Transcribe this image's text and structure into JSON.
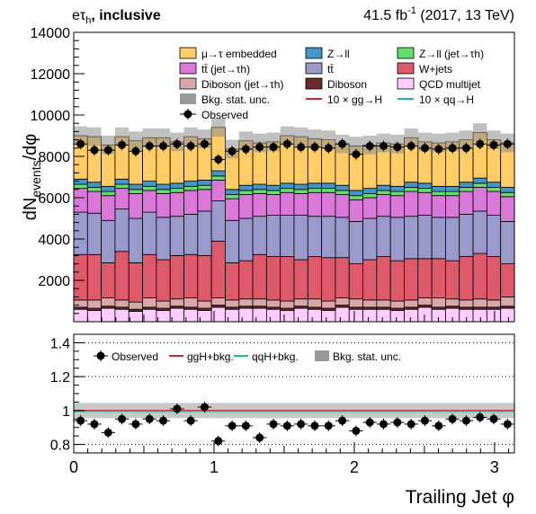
{
  "header": {
    "channel": "eτ",
    "channel_sub": "h",
    "category": ", inclusive",
    "lumi_value": "41.5 fb",
    "lumi_exp": "-1",
    "lumi_rest": " (2017, 13 TeV)"
  },
  "legend_main": [
    {
      "label": "μ→τ embedded",
      "color": "#ffcc66",
      "kind": "fill"
    },
    {
      "label": "Z→ll",
      "color": "#4496c8",
      "kind": "fill"
    },
    {
      "label": "Z→ll (jet→τh)",
      "color": "#64de6a",
      "kind": "fill"
    },
    {
      "label": "tt̄ (jet→τh)",
      "color": "#d978d9",
      "kind": "fill"
    },
    {
      "label": "tt̄",
      "color": "#9999cc",
      "kind": "fill"
    },
    {
      "label": "W+jets",
      "color": "#de5a6a",
      "kind": "fill"
    },
    {
      "label": "Diboson (jet→τh)",
      "color": "#d8a8a8",
      "kind": "fill"
    },
    {
      "label": "Diboson",
      "color": "#6a2a2a",
      "kind": "fill"
    },
    {
      "label": "QCD multijet",
      "color": "#ffccff",
      "kind": "fill"
    },
    {
      "label": "Bkg. stat. unc.",
      "color": "#999999",
      "kind": "band"
    },
    {
      "label": "10 × gg→H",
      "color": "#d62728",
      "kind": "line"
    },
    {
      "label": "10 × qq→H",
      "color": "#17b8a6",
      "kind": "line"
    },
    {
      "label": "Observed",
      "color": "#000000",
      "kind": "marker"
    }
  ],
  "legend_ratio": [
    {
      "label": "Observed",
      "color": "#000000",
      "kind": "marker"
    },
    {
      "label": "ggH+bkg.",
      "color": "#d62728",
      "kind": "line"
    },
    {
      "label": "qqH+bkg.",
      "color": "#17b8a6",
      "kind": "line"
    },
    {
      "label": "Bkg. stat. unc.",
      "color": "#999999",
      "kind": "band"
    }
  ],
  "chart_data": [
    {
      "type": "bar",
      "stacked": true,
      "ylabel": "dN",
      "ylabel_sub": "events",
      "ylabel_tail": "/dφ",
      "ylim": [
        0,
        14000
      ],
      "xlim": [
        0,
        3.1416
      ],
      "yticks": [
        "2000",
        "4000",
        "6000",
        "8000",
        "10000",
        "12000",
        "14000"
      ],
      "ytick_values": [
        2000,
        4000,
        6000,
        8000,
        10000,
        12000,
        14000
      ],
      "stack_order": [
        "QCD multijet",
        "Diboson",
        "Diboson (jet→τh)",
        "W+jets",
        "tt̄",
        "tt̄ (jet→τh)",
        "Z→ll (jet→τh)",
        "Z→ll",
        "μ→τ embedded"
      ],
      "series": [
        {
          "name": "QCD multijet",
          "color": "#ffccff",
          "values": [
            600,
            550,
            650,
            600,
            500,
            600,
            550,
            650,
            600,
            550,
            700,
            600,
            650,
            650,
            600,
            550,
            650,
            600,
            550,
            700,
            600,
            600,
            600,
            550,
            600,
            700,
            600,
            650,
            600,
            600,
            600,
            650
          ]
        },
        {
          "name": "Diboson",
          "color": "#6a2a2a",
          "values": [
            100,
            100,
            100,
            100,
            100,
            100,
            100,
            100,
            100,
            100,
            100,
            100,
            100,
            100,
            100,
            100,
            100,
            100,
            100,
            100,
            100,
            100,
            100,
            100,
            100,
            100,
            100,
            100,
            100,
            100,
            100,
            100
          ]
        },
        {
          "name": "Diboson (jet→τh)",
          "color": "#d8a8a8",
          "values": [
            350,
            400,
            400,
            350,
            350,
            450,
            350,
            350,
            450,
            350,
            350,
            350,
            350,
            350,
            350,
            350,
            350,
            400,
            350,
            350,
            400,
            350,
            350,
            350,
            350,
            350,
            450,
            350,
            350,
            400,
            350,
            450
          ]
        },
        {
          "name": "W+jets",
          "color": "#de5a6a",
          "values": [
            2200,
            2200,
            1700,
            2350,
            1900,
            2100,
            2000,
            2100,
            2100,
            2200,
            2750,
            1800,
            1850,
            2150,
            2100,
            2150,
            1900,
            2050,
            2100,
            1950,
            1700,
            1950,
            2100,
            1950,
            2000,
            1900,
            1900,
            1850,
            2100,
            2200,
            2100,
            1600
          ]
        },
        {
          "name": "tt̄",
          "color": "#9999cc",
          "values": [
            2050,
            2000,
            2050,
            2050,
            2150,
            2050,
            2050,
            1900,
            1950,
            2150,
            1950,
            2050,
            2050,
            1850,
            2000,
            2000,
            2150,
            1950,
            2000,
            1950,
            2050,
            2000,
            1950,
            2100,
            2050,
            2100,
            2000,
            2100,
            2050,
            2050,
            2000,
            2050
          ]
        },
        {
          "name": "tt̄ (jet→τh)",
          "color": "#d978d9",
          "values": [
            1150,
            1050,
            1200,
            1000,
            1200,
            1050,
            1150,
            1150,
            1150,
            1050,
            1000,
            1050,
            1150,
            1100,
            1000,
            1100,
            1050,
            1150,
            1150,
            1100,
            1050,
            1000,
            1050,
            1050,
            1200,
            1100,
            1050,
            1050,
            1100,
            1150,
            1150,
            1200
          ]
        },
        {
          "name": "Z→ll (jet→τh)",
          "color": "#64de6a",
          "values": [
            200,
            200,
            200,
            200,
            200,
            200,
            200,
            200,
            200,
            200,
            200,
            200,
            200,
            200,
            200,
            200,
            200,
            200,
            200,
            200,
            200,
            200,
            200,
            200,
            200,
            200,
            200,
            200,
            200,
            200,
            200,
            200
          ]
        },
        {
          "name": "Z→ll",
          "color": "#4496c8",
          "values": [
            250,
            250,
            250,
            250,
            250,
            250,
            250,
            250,
            250,
            250,
            250,
            250,
            250,
            250,
            250,
            250,
            250,
            250,
            250,
            250,
            250,
            250,
            250,
            250,
            250,
            250,
            250,
            250,
            250,
            250,
            250,
            250
          ]
        },
        {
          "name": "μ→τ embedded",
          "color": "#ffcc66",
          "values": [
            2100,
            2200,
            2000,
            2050,
            2100,
            2100,
            2250,
            2000,
            2150,
            2000,
            2100,
            1950,
            2150,
            2000,
            2100,
            2300,
            2300,
            2150,
            2100,
            2000,
            2150,
            2100,
            2050,
            2050,
            2150,
            2000,
            2100,
            2150,
            2050,
            2200,
            2050,
            2150
          ]
        }
      ],
      "observed": [
        8600,
        8300,
        8300,
        8550,
        8250,
        8500,
        8500,
        8600,
        8500,
        8600,
        7850,
        8250,
        8350,
        8450,
        8450,
        8600,
        8450,
        8450,
        8400,
        8600,
        8100,
        8500,
        8500,
        8450,
        8500,
        8400,
        8350,
        8400,
        8400,
        8600,
        8550,
        8600
      ],
      "stat_unc": 450,
      "signal_ggH_x10": 80,
      "signal_qqH_x10": 40
    },
    {
      "type": "scatter",
      "xlabel": "Trailing Jet  φ",
      "ylim": [
        0.75,
        1.45
      ],
      "yticks": [
        "0.8",
        "1",
        "1.2",
        "1.4"
      ],
      "ytick_values": [
        0.8,
        1.0,
        1.2,
        1.4
      ],
      "xticks": [
        "0",
        "1",
        "2",
        "3"
      ],
      "xtick_values": [
        0,
        1,
        2,
        3
      ],
      "ratio": [
        0.94,
        0.92,
        0.87,
        0.95,
        0.92,
        0.95,
        0.94,
        1.01,
        0.94,
        1.02,
        0.82,
        0.91,
        0.91,
        0.84,
        0.92,
        0.91,
        0.92,
        0.91,
        0.91,
        0.94,
        0.88,
        0.93,
        0.92,
        0.93,
        0.92,
        0.94,
        0.91,
        0.95,
        0.94,
        0.96,
        0.95,
        0.92
      ],
      "band_half_width": 0.045,
      "ggH_ratio": 1.0,
      "qqH_ratio": 0.995
    }
  ]
}
